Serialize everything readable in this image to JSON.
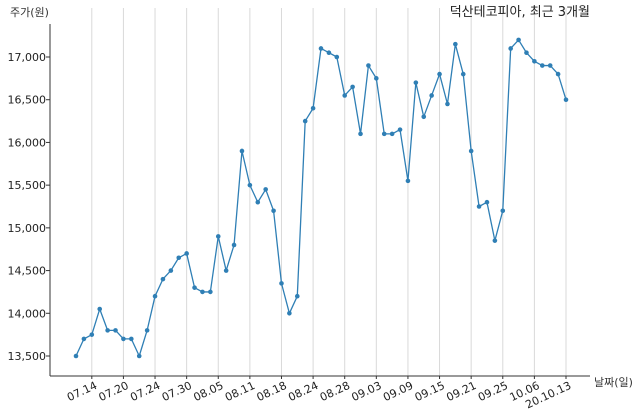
{
  "chart_data": {
    "type": "line",
    "title": "덕산테코피아, 최근 3개월",
    "ylabel": "주가(원)",
    "xlabel": "날짜(일)",
    "ylim": [
      13300,
      17400
    ],
    "grid": "vertical",
    "colors": {
      "line": "#2f7fb5",
      "grid": "#d9d9d9",
      "axis": "#333333"
    },
    "y_ticks": [
      {
        "value": 13500,
        "label": "13,500"
      },
      {
        "value": 14000,
        "label": "14,000"
      },
      {
        "value": 14500,
        "label": "14,500"
      },
      {
        "value": 15000,
        "label": "15,000"
      },
      {
        "value": 15500,
        "label": "15,500"
      },
      {
        "value": 16000,
        "label": "16,000"
      },
      {
        "value": 16500,
        "label": "16,500"
      },
      {
        "value": 17000,
        "label": "17,000"
      }
    ],
    "x_ticks": [
      {
        "index": 2,
        "label": "07.14"
      },
      {
        "index": 6,
        "label": "07.20"
      },
      {
        "index": 10,
        "label": "07.24"
      },
      {
        "index": 14,
        "label": "07.30"
      },
      {
        "index": 18,
        "label": "08.05"
      },
      {
        "index": 22,
        "label": "08.11"
      },
      {
        "index": 26,
        "label": "08.18"
      },
      {
        "index": 30,
        "label": "08.24"
      },
      {
        "index": 34,
        "label": "08.28"
      },
      {
        "index": 38,
        "label": "09.03"
      },
      {
        "index": 42,
        "label": "09.09"
      },
      {
        "index": 46,
        "label": "09.15"
      },
      {
        "index": 50,
        "label": "09.21"
      },
      {
        "index": 54,
        "label": "09.25"
      },
      {
        "index": 58,
        "label": "10.06"
      },
      {
        "index": 62,
        "label": "20.10.13"
      }
    ],
    "series": [
      {
        "values": [
          13500,
          13700,
          13750,
          14050,
          13800,
          13800,
          13700,
          13700,
          13500,
          13800,
          14200,
          14400,
          14500,
          14650,
          14700,
          14300,
          14250,
          14250,
          14900,
          14500,
          14800,
          15900,
          15500,
          15300,
          15450,
          15200,
          14350,
          14000,
          14200,
          16250,
          16400,
          17100,
          17050,
          17000,
          16550,
          16650,
          16100,
          16900,
          16750,
          16100,
          16100,
          16150,
          15550,
          16700,
          16300,
          16550,
          16800,
          16450,
          17150,
          16800,
          15900,
          15250,
          15300,
          14850,
          15200,
          17100,
          17200,
          17050,
          16950,
          16900,
          16900,
          16800,
          16500
        ]
      }
    ]
  }
}
